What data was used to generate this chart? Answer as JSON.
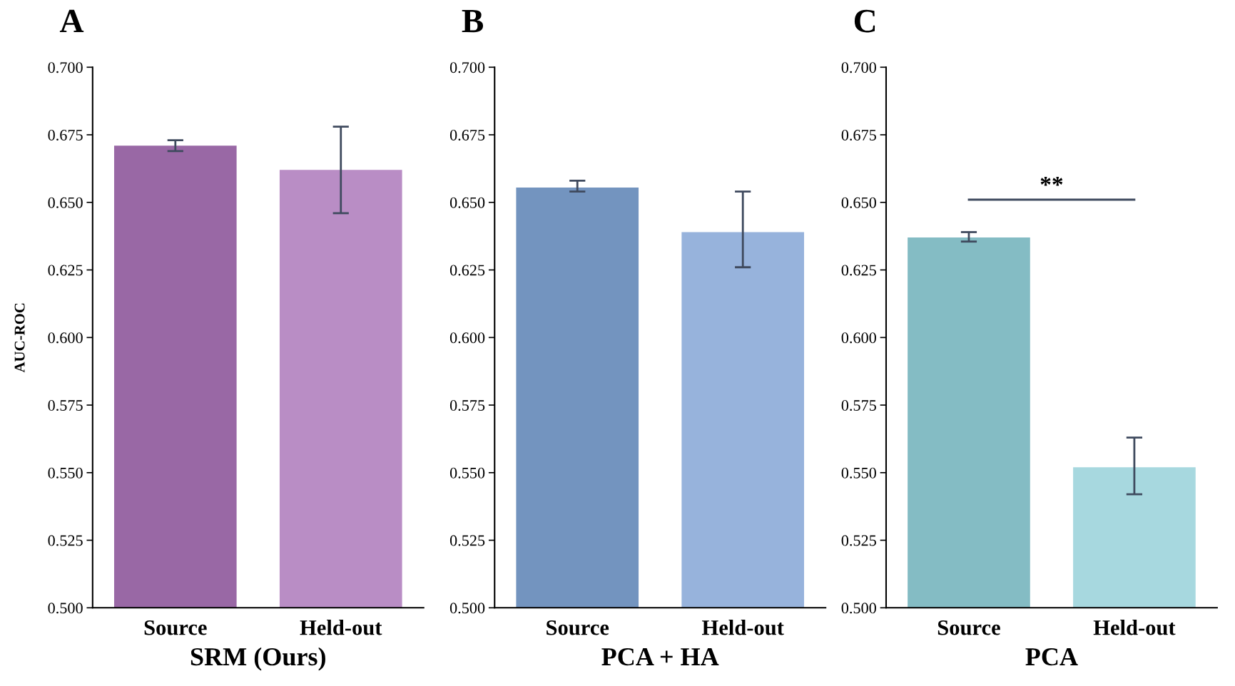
{
  "chart_data": [
    {
      "type": "bar",
      "title": "A",
      "xlabel": "SRM (Ours)",
      "ylabel": "AUC-ROC",
      "categories": [
        "Source",
        "Held-out"
      ],
      "values": [
        0.671,
        0.662
      ],
      "colors": [
        "#9968a5",
        "#b98dc5"
      ],
      "errors": [
        [
          0.669,
          0.673
        ],
        [
          0.646,
          0.678
        ]
      ],
      "ylim": [
        0.5,
        0.7
      ],
      "yticks": [
        {
          "value": 0.5,
          "label": "0.500"
        },
        {
          "value": 0.525,
          "label": "0.525"
        },
        {
          "value": 0.55,
          "label": "0.550"
        },
        {
          "value": 0.575,
          "label": "0.575"
        },
        {
          "value": 0.6,
          "label": "0.600"
        },
        {
          "value": 0.625,
          "label": "0.625"
        },
        {
          "value": 0.65,
          "label": "0.650"
        },
        {
          "value": 0.675,
          "label": "0.675"
        },
        {
          "value": 0.7,
          "label": "0.700"
        }
      ],
      "grid": false
    },
    {
      "type": "bar",
      "title": "B",
      "xlabel": "PCA + HA",
      "categories": [
        "Source",
        "Held-out"
      ],
      "values": [
        0.6555,
        0.639
      ],
      "colors": [
        "#7394bf",
        "#97b3dc"
      ],
      "errors": [
        [
          0.654,
          0.658
        ],
        [
          0.626,
          0.654
        ]
      ],
      "ylim": [
        0.5,
        0.7
      ],
      "yticks": [
        {
          "value": 0.5,
          "label": "0.500"
        },
        {
          "value": 0.525,
          "label": "0.525"
        },
        {
          "value": 0.55,
          "label": "0.550"
        },
        {
          "value": 0.575,
          "label": "0.575"
        },
        {
          "value": 0.6,
          "label": "0.600"
        },
        {
          "value": 0.625,
          "label": "0.625"
        },
        {
          "value": 0.65,
          "label": "0.650"
        },
        {
          "value": 0.675,
          "label": "0.675"
        },
        {
          "value": 0.7,
          "label": "0.700"
        }
      ],
      "grid": false
    },
    {
      "type": "bar",
      "title": "C",
      "xlabel": "PCA",
      "categories": [
        "Source",
        "Held-out"
      ],
      "values": [
        0.637,
        0.552
      ],
      "colors": [
        "#84bcc4",
        "#a7d8df"
      ],
      "errors": [
        [
          0.6355,
          0.639
        ],
        [
          0.542,
          0.563
        ]
      ],
      "ylim": [
        0.5,
        0.7
      ],
      "yticks": [
        {
          "value": 0.5,
          "label": "0.500"
        },
        {
          "value": 0.525,
          "label": "0.525"
        },
        {
          "value": 0.55,
          "label": "0.550"
        },
        {
          "value": 0.575,
          "label": "0.575"
        },
        {
          "value": 0.6,
          "label": "0.600"
        },
        {
          "value": 0.625,
          "label": "0.625"
        },
        {
          "value": 0.65,
          "label": "0.650"
        },
        {
          "value": 0.675,
          "label": "0.675"
        },
        {
          "value": 0.7,
          "label": "0.700"
        }
      ],
      "grid": false,
      "annotations": [
        "**"
      ]
    }
  ]
}
